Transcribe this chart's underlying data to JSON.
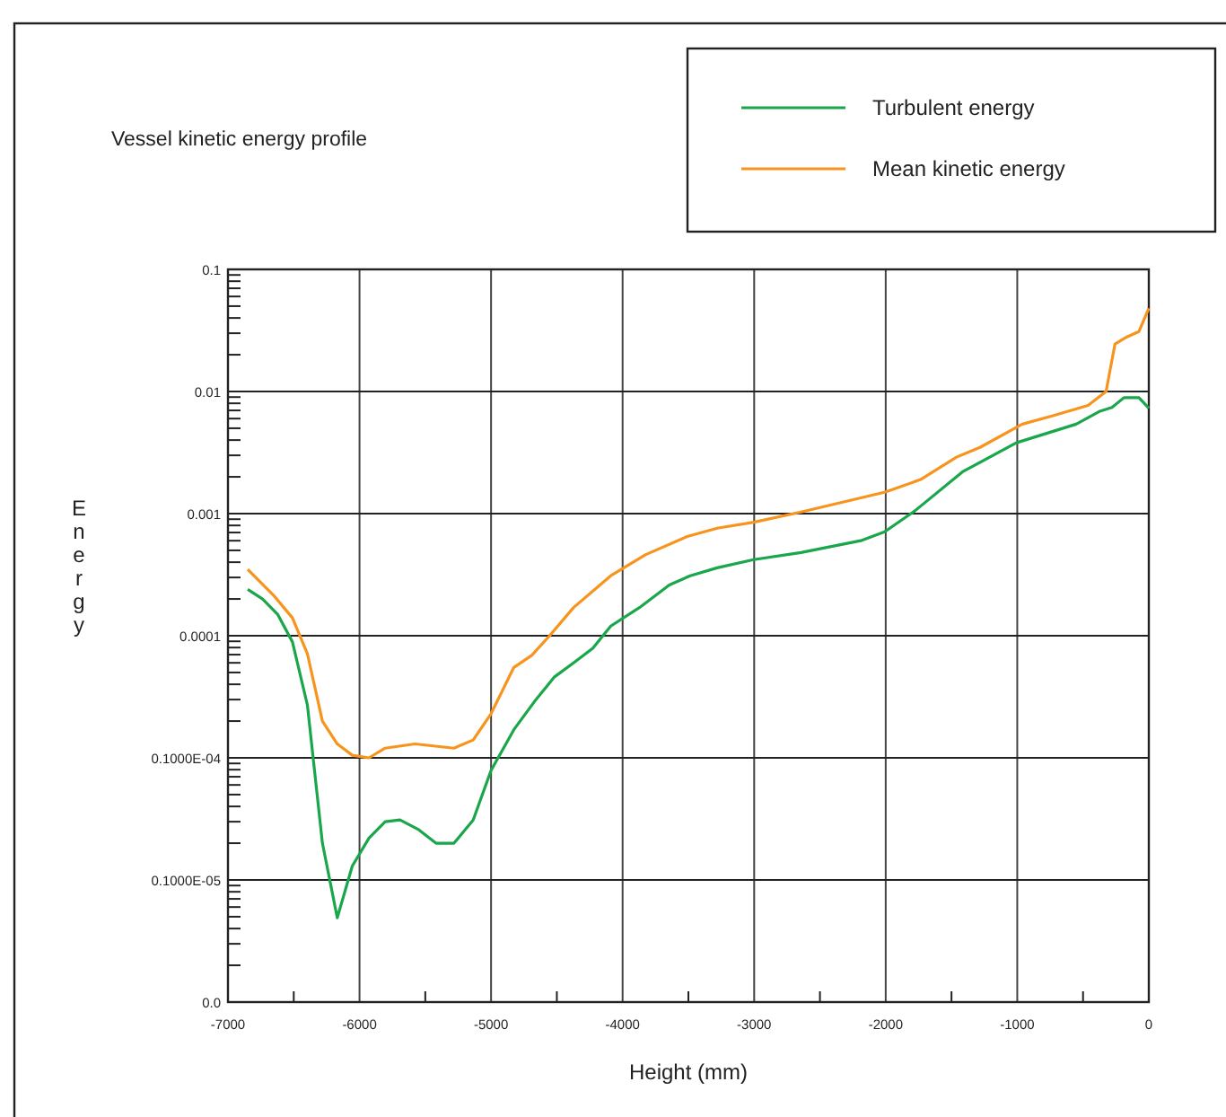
{
  "chart_data": {
    "type": "line",
    "title": "Vessel kinetic energy profile",
    "xlabel": "Height (mm)",
    "ylabel": "Energy",
    "log": "y",
    "grid": true,
    "legend": "top right",
    "line_style": "solid",
    "marker": "none",
    "xlim": [
      -7000,
      0
    ],
    "xticks": [
      -7000,
      {
        "value": -6500,
        "label": null
      },
      -6000,
      {
        "value": -5500,
        "label": null
      },
      -5000,
      {
        "value": -4500,
        "label": null
      },
      -4000,
      {
        "value": -3500,
        "label": null
      },
      -3000,
      {
        "value": -2500,
        "label": null
      },
      -2000,
      {
        "value": -1500,
        "label": null
      },
      -1000,
      {
        "value": -500,
        "label": null
      },
      0
    ],
    "ylim": [
      1e-07,
      0.1
    ],
    "yticks": [
      {
        "value": 1e-07,
        "label": "0.0"
      },
      {
        "value": 2e-07,
        "label": null
      },
      {
        "value": 3e-07,
        "label": null
      },
      {
        "value": 4e-07,
        "label": null
      },
      {
        "value": 5e-07,
        "label": null
      },
      {
        "value": 6e-07,
        "label": null
      },
      {
        "value": 7e-07,
        "label": null
      },
      {
        "value": 8e-07,
        "label": null
      },
      {
        "value": 9e-07,
        "label": null
      },
      {
        "value": 1e-06,
        "label": "0.1000E-05"
      },
      {
        "value": 2e-06,
        "label": null
      },
      {
        "value": 3e-06,
        "label": null
      },
      {
        "value": 4e-06,
        "label": null
      },
      {
        "value": 5e-06,
        "label": null
      },
      {
        "value": 6e-06,
        "label": null
      },
      {
        "value": 7e-06,
        "label": null
      },
      {
        "value": 8e-06,
        "label": null
      },
      {
        "value": 9e-06,
        "label": null
      },
      {
        "value": 1e-05,
        "label": "0.1000E-04"
      },
      {
        "value": 2e-05,
        "label": null
      },
      {
        "value": 3e-05,
        "label": null
      },
      {
        "value": 4e-05,
        "label": null
      },
      {
        "value": 5e-05,
        "label": null
      },
      {
        "value": 6e-05,
        "label": null
      },
      {
        "value": 7e-05,
        "label": null
      },
      {
        "value": 8e-05,
        "label": null
      },
      {
        "value": 9e-05,
        "label": null
      },
      0.0001,
      {
        "value": 0.0002,
        "label": null
      },
      {
        "value": 0.0003,
        "label": null
      },
      {
        "value": 0.0004,
        "label": null
      },
      {
        "value": 0.0005,
        "label": null
      },
      {
        "value": 0.0006,
        "label": null
      },
      {
        "value": 0.0007,
        "label": null
      },
      {
        "value": 0.0008,
        "label": null
      },
      {
        "value": 0.0009,
        "label": null
      },
      0.001,
      {
        "value": 0.002,
        "label": null
      },
      {
        "value": 0.003,
        "label": null
      },
      {
        "value": 0.004,
        "label": null
      },
      {
        "value": 0.005,
        "label": null
      },
      {
        "value": 0.006,
        "label": null
      },
      {
        "value": 0.007,
        "label": null
      },
      {
        "value": 0.008,
        "label": null
      },
      {
        "value": 0.009,
        "label": null
      },
      0.01,
      {
        "value": 0.02,
        "label": null
      },
      {
        "value": 0.03,
        "label": null
      },
      {
        "value": 0.04,
        "label": null
      },
      {
        "value": 0.05,
        "label": null
      },
      {
        "value": 0.06,
        "label": null
      },
      {
        "value": 0.07,
        "label": null
      },
      {
        "value": 0.08,
        "label": null
      },
      {
        "value": 0.09,
        "label": null
      },
      0.1
    ],
    "series": [
      {
        "name": "Turbulent energy",
        "color": "#1aa64a",
        "x": [
          -6850,
          -6737,
          -6623,
          -6510,
          -6396,
          -6282,
          -6169,
          -6055,
          -5928,
          -5805,
          -5692,
          -5555,
          -5419,
          -5282,
          -5136,
          -5000,
          -4827,
          -4669,
          -4518,
          -4373,
          -4227,
          -4090,
          -3872,
          -3645,
          -3486,
          -3281,
          -3004,
          -2644,
          -2190,
          -2008,
          -1780,
          -1416,
          -1007,
          -552,
          -371,
          -280,
          -189,
          -75,
          0
        ],
        "values": [
          0.00024,
          0.0002,
          0.00015,
          8.9e-05,
          2.7e-05,
          2e-06,
          4.9e-07,
          1.3e-06,
          2.2e-06,
          3e-06,
          3.1e-06,
          2.6e-06,
          2e-06,
          2e-06,
          3.1e-06,
          7.9e-06,
          1.7e-05,
          2.9e-05,
          4.6e-05,
          6e-05,
          7.9e-05,
          0.00012,
          0.00017,
          0.00026,
          0.00031,
          0.00036,
          0.00042,
          0.00048,
          0.0006,
          0.00071,
          0.00105,
          0.0022,
          0.0038,
          0.0054,
          0.0069,
          0.0074,
          0.0089,
          0.0089,
          0.0073
        ]
      },
      {
        "name": "Mean kinetic energy",
        "color": "#f7941d",
        "x": [
          -6850,
          -6646,
          -6510,
          -6396,
          -6282,
          -6169,
          -6055,
          -5928,
          -5805,
          -5578,
          -5282,
          -5136,
          -5000,
          -4827,
          -4691,
          -4555,
          -4373,
          -4090,
          -3827,
          -3509,
          -3281,
          -3004,
          -2644,
          -2003,
          -1735,
          -1462,
          -1280,
          -962,
          -735,
          -462,
          -325,
          -257,
          -166,
          -75,
          0
        ],
        "values": [
          0.00035,
          0.00021,
          0.00014,
          7.1e-05,
          2e-05,
          1.3e-05,
          1.05e-05,
          1e-05,
          1.2e-05,
          1.3e-05,
          1.2e-05,
          1.4e-05,
          2.3e-05,
          5.5e-05,
          6.9e-05,
          0.0001,
          0.00017,
          0.00031,
          0.00046,
          0.00065,
          0.00076,
          0.00085,
          0.00103,
          0.0015,
          0.0019,
          0.0029,
          0.0035,
          0.0054,
          0.0063,
          0.0077,
          0.01,
          0.0245,
          0.028,
          0.031,
          0.048
        ]
      }
    ]
  }
}
